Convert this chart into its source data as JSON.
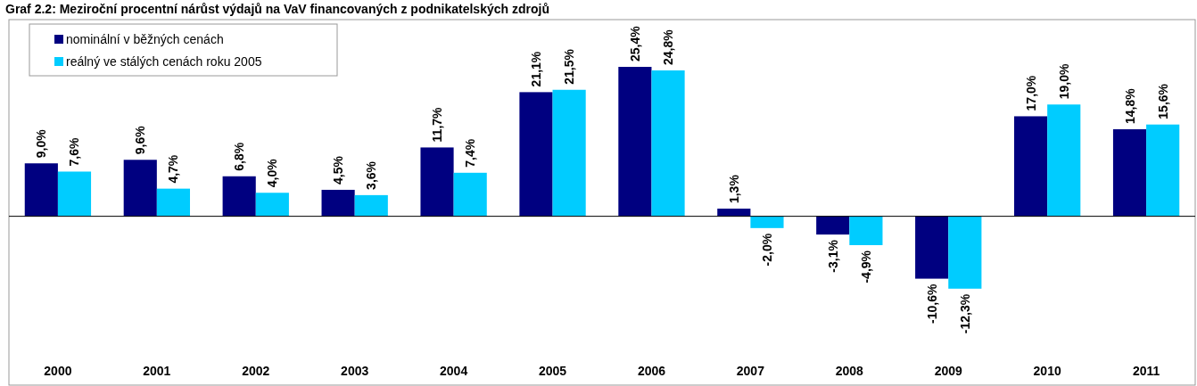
{
  "chart_data": {
    "type": "bar",
    "title": "Graf 2.2: Meziroční procentní nárůst výdajů na VaV financovaných z podnikatelských zdrojů",
    "categories": [
      "2000",
      "2001",
      "2002",
      "2003",
      "2004",
      "2005",
      "2006",
      "2007",
      "2008",
      "2009",
      "2010",
      "2011"
    ],
    "series": [
      {
        "name": "nominální v běžných cenách",
        "color": "#000080",
        "values": [
          9.0,
          9.6,
          6.8,
          4.5,
          11.7,
          21.1,
          25.4,
          1.3,
          -3.1,
          -10.6,
          17.0,
          14.8
        ],
        "value_labels": [
          "9,0%",
          "9,6%",
          "6,8%",
          "4,5%",
          "11,7%",
          "21,1%",
          "25,4%",
          "1,3%",
          "-3,1%",
          "-10,6%",
          "17,0%",
          "14,8%"
        ]
      },
      {
        "name": "reálný ve stálých cenách roku 2005",
        "color": "#00ccff",
        "values": [
          7.6,
          4.7,
          4.0,
          3.6,
          7.4,
          21.5,
          24.8,
          -2.0,
          -4.9,
          -12.3,
          19.0,
          15.6
        ],
        "value_labels": [
          "7,6%",
          "4,7%",
          "4,0%",
          "3,6%",
          "7,4%",
          "21,5%",
          "24,8%",
          "-2,0%",
          "-4,9%",
          "-12,3%",
          "19,0%",
          "15,6%"
        ]
      }
    ],
    "legend": "top left"
  }
}
